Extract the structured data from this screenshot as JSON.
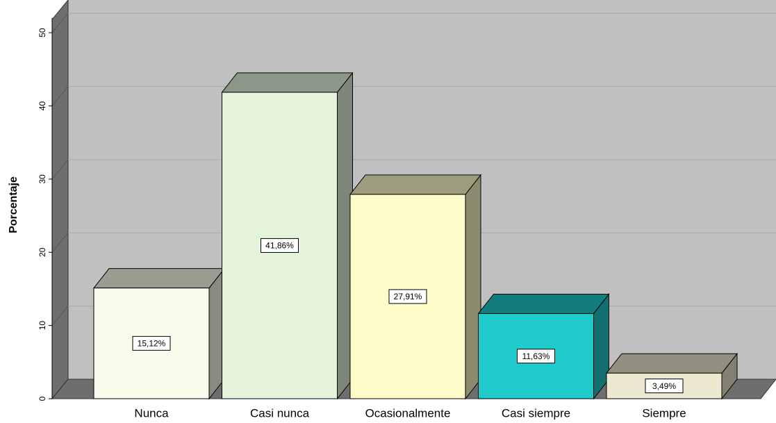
{
  "chart_data": {
    "type": "bar3d",
    "y_label": "Porcentaje",
    "categories": [
      "Nunca",
      "Casi nunca",
      "Ocasionalmente",
      "Casi siempre",
      "Siempre"
    ],
    "values": [
      15.12,
      41.86,
      27.91,
      11.63,
      3.49
    ],
    "value_labels": [
      "15,12%",
      "41,86%",
      "27,91%",
      "11,63%",
      "3,49%"
    ],
    "colors": [
      "#fafbeb",
      "#e3f4da",
      "#fefdca",
      "#1ecaca",
      "#ede8d0"
    ],
    "ylim": [
      0,
      52
    ],
    "yticks": [
      0,
      10,
      20,
      30,
      40,
      50
    ],
    "grid": true
  }
}
